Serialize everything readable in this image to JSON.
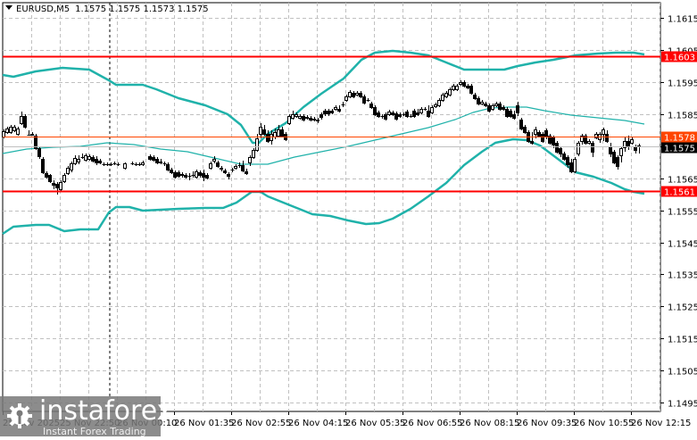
{
  "header": {
    "symbol": "EURUSD,M5",
    "ohlc": "1.1575 1.1575 1.1573 1.1575",
    "open": "1.1575",
    "high": "1.1575",
    "low": "1.1573",
    "close": "1.1575"
  },
  "price_axis": {
    "ticks": [
      "1.1615",
      "1.1605",
      "1.1595",
      "1.1585",
      "1.1575",
      "1.1565",
      "1.1555",
      "1.1545",
      "1.1535",
      "1.1525",
      "1.1515",
      "1.1505",
      "1.1495"
    ]
  },
  "price_tags": {
    "resistance": "1.1603",
    "mid_level": "1.1578",
    "current": "1.1575",
    "support": "1.1561"
  },
  "time_axis": {
    "ticks": [
      "25 Nov 2025",
      "25 Nov 22:50",
      "26 Nov 00:10",
      "26 Nov 01:35",
      "26 Nov 02:55",
      "26 Nov 04:15",
      "26 Nov 05:35",
      "26 Nov 06:55",
      "26 Nov 08:15",
      "26 Nov 09:35",
      "26 Nov 10:55",
      "26 Nov 12:15"
    ]
  },
  "watermark": {
    "brand": "instaforex",
    "tagline": "Instant Forex Trading"
  },
  "colors": {
    "resistance_line": "#ff0000",
    "support_line": "#ff0000",
    "mid_line": "#ff4500",
    "current_line": "#c0c0c0",
    "bollinger": "#20b2aa",
    "grid": "#c0c0c0",
    "candle": "#000000"
  },
  "chart_data": {
    "type": "candlestick",
    "title": "EURUSD,M5",
    "xlabel": "",
    "ylabel": "",
    "ylim": [
      1.149,
      1.162
    ],
    "grid": true,
    "categories": [
      "25 Nov 2025",
      "25 Nov 22:50",
      "26 Nov 00:10",
      "26 Nov 01:35",
      "26 Nov 02:55",
      "26 Nov 04:15",
      "26 Nov 05:35",
      "26 Nov 06:55",
      "26 Nov 08:15",
      "26 Nov 09:35",
      "26 Nov 10:55",
      "26 Nov 12:15"
    ],
    "horizontal_levels": [
      {
        "name": "resistance",
        "value": 1.1603,
        "color": "#ff0000"
      },
      {
        "name": "mid",
        "value": 1.1578,
        "color": "#ff4500"
      },
      {
        "name": "current",
        "value": 1.1575,
        "color": "#c0c0c0"
      },
      {
        "name": "support",
        "value": 1.1561,
        "color": "#ff0000"
      }
    ],
    "series": [
      {
        "name": "Close (approx)",
        "x": [
          "25 Nov 2025",
          "25 Nov 22:50",
          "26 Nov 00:10",
          "26 Nov 01:35",
          "26 Nov 02:55",
          "26 Nov 04:15",
          "26 Nov 05:35",
          "26 Nov 06:55",
          "26 Nov 08:15",
          "26 Nov 09:35",
          "26 Nov 10:55",
          "26 Nov 12:15"
        ],
        "values": [
          1.158,
          1.1562,
          1.1572,
          1.157,
          1.1572,
          1.1586,
          1.159,
          1.1585,
          1.1592,
          1.1578,
          1.1572,
          1.1575
        ]
      },
      {
        "name": "Bollinger Upper (approx)",
        "values": [
          1.1598,
          1.1599,
          1.1596,
          1.1588,
          1.158,
          1.1592,
          1.1604,
          1.1604,
          1.1601,
          1.1601,
          1.1603,
          1.1604
        ]
      },
      {
        "name": "Bollinger Middle (approx)",
        "values": [
          1.1572,
          1.1574,
          1.1574,
          1.1571,
          1.1568,
          1.1573,
          1.1577,
          1.1581,
          1.1587,
          1.1588,
          1.1585,
          1.1583
        ]
      },
      {
        "name": "Bollinger Lower (approx)",
        "values": [
          1.1547,
          1.1549,
          1.1556,
          1.1556,
          1.156,
          1.1553,
          1.155,
          1.1556,
          1.157,
          1.1577,
          1.1566,
          1.1561
        ]
      }
    ]
  }
}
